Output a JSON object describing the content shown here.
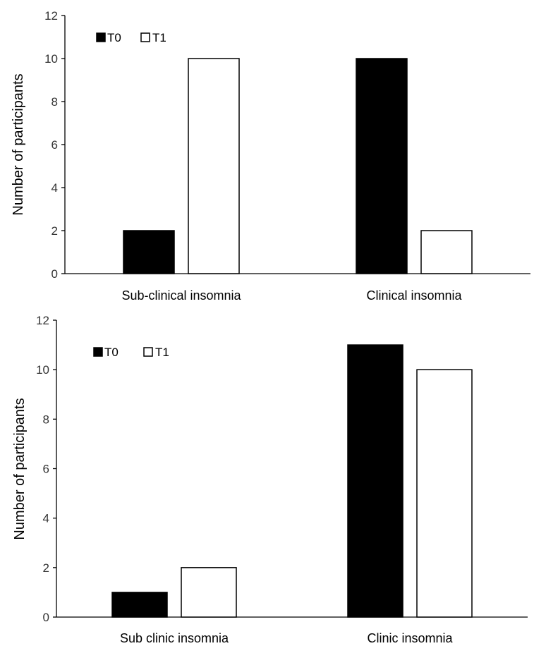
{
  "chart_data": [
    {
      "type": "bar",
      "categories": [
        "Sub-clinical insomnia",
        "Clinical insomnia"
      ],
      "series": [
        {
          "name": "T0",
          "values": [
            2,
            10
          ],
          "color": "#000000"
        },
        {
          "name": "T1",
          "values": [
            10,
            2
          ],
          "color": "#ffffff"
        }
      ],
      "ylabel": "Number of participants",
      "xlabel": "",
      "ylim": [
        0,
        12
      ],
      "yticks": [
        0,
        2,
        4,
        6,
        8,
        10,
        12
      ],
      "legend": "top-left",
      "grid": false
    },
    {
      "type": "bar",
      "categories": [
        "Sub clinic insomnia",
        "Clinic insomnia"
      ],
      "series": [
        {
          "name": "T0",
          "values": [
            1,
            11
          ],
          "color": "#000000"
        },
        {
          "name": "T1",
          "values": [
            2,
            10
          ],
          "color": "#ffffff"
        }
      ],
      "ylabel": "Number of participants",
      "xlabel": "",
      "ylim": [
        0,
        12
      ],
      "yticks": [
        0,
        2,
        4,
        6,
        8,
        10,
        12
      ],
      "legend": "top-left",
      "grid": false
    }
  ]
}
